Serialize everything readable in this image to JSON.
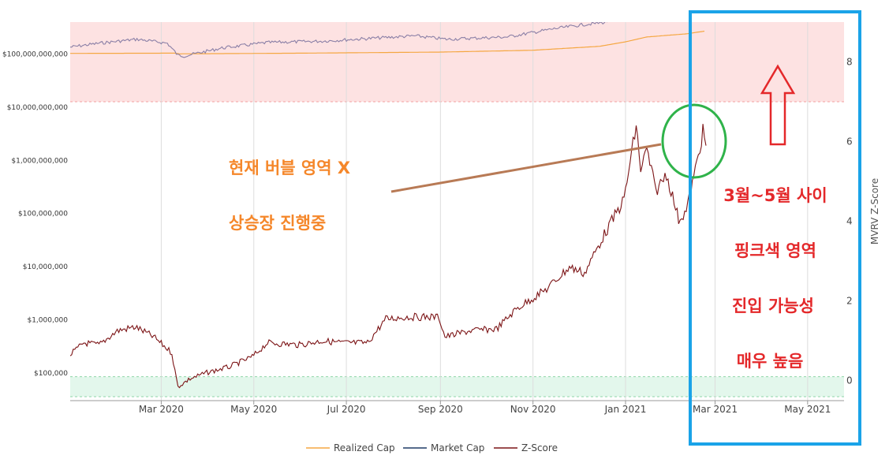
{
  "chart_data": {
    "type": "line",
    "x_range": [
      "2020-01-01",
      "2021-05-25"
    ],
    "y_left": {
      "scale": "log",
      "range": [
        30000,
        400000000000
      ],
      "ticks": [
        100000,
        1000000,
        10000000,
        100000000,
        1000000000,
        10000000000,
        100000000000
      ],
      "tick_labels": [
        "$100,000",
        "$1,000,000",
        "$10,000,000",
        "$100,000,000",
        "$1,000,000,000",
        "$10,000,000,000",
        "$100,000,000,000"
      ]
    },
    "y_right": {
      "label": "MVRV Z-Score",
      "range": [
        -0.5,
        9
      ],
      "ticks": [
        0,
        2,
        4,
        6,
        8
      ],
      "tick_labels": [
        "0",
        "2",
        "4",
        "6",
        "8"
      ]
    },
    "x_ticks": [
      {
        "date": "2020-03-01",
        "label": "Mar 2020"
      },
      {
        "date": "2020-05-01",
        "label": "May 2020"
      },
      {
        "date": "2020-07-01",
        "label": "Jul 2020"
      },
      {
        "date": "2020-09-01",
        "label": "Sep 2020"
      },
      {
        "date": "2020-11-01",
        "label": "Nov 2020"
      },
      {
        "date": "2021-01-01",
        "label": "Jan 2021"
      },
      {
        "date": "2021-03-01",
        "label": "Mar 2021"
      },
      {
        "date": "2021-05-01",
        "label": "May 2021"
      }
    ],
    "zones": [
      {
        "name": "red",
        "z_from": 7,
        "z_to": 9,
        "color": "#fde2e2"
      },
      {
        "name": "green",
        "z_from": -0.4,
        "z_to": 0.1,
        "color": "#e3f7ec"
      }
    ],
    "series": [
      {
        "name": "Realized Cap",
        "color": "#f5a742",
        "axis": "left",
        "points": [
          [
            "2020-01-01",
            103000000000
          ],
          [
            "2020-03-10",
            104000000000
          ],
          [
            "2020-03-13",
            101000000000
          ],
          [
            "2020-06-01",
            104000000000
          ],
          [
            "2020-09-01",
            109000000000
          ],
          [
            "2020-11-01",
            118000000000
          ],
          [
            "2020-12-15",
            140000000000
          ],
          [
            "2021-01-01",
            170000000000
          ],
          [
            "2021-01-15",
            210000000000
          ],
          [
            "2021-02-10",
            240000000000
          ],
          [
            "2021-02-22",
            270000000000
          ]
        ]
      },
      {
        "name": "Market Cap",
        "color": "#1f3c66",
        "axis": "left",
        "points": [
          [
            "2020-01-01",
            135000000000
          ],
          [
            "2020-01-20",
            160000000000
          ],
          [
            "2020-02-14",
            190000000000
          ],
          [
            "2020-03-05",
            160000000000
          ],
          [
            "2020-03-12",
            95000000000
          ],
          [
            "2020-03-16",
            92000000000
          ],
          [
            "2020-04-10",
            130000000000
          ],
          [
            "2020-05-10",
            165000000000
          ],
          [
            "2020-06-15",
            175000000000
          ],
          [
            "2020-07-27",
            205000000000
          ],
          [
            "2020-08-15",
            220000000000
          ],
          [
            "2020-09-05",
            190000000000
          ],
          [
            "2020-10-15",
            210000000000
          ],
          [
            "2020-11-15",
            300000000000
          ],
          [
            "2020-12-05",
            360000000000
          ],
          [
            "2020-12-20",
            400000000000
          ]
        ]
      },
      {
        "name": "Z-Score",
        "color": "#7c1416",
        "axis": "right",
        "points": [
          [
            "2020-01-01",
            0.65
          ],
          [
            "2020-01-10",
            0.95
          ],
          [
            "2020-01-20",
            0.9
          ],
          [
            "2020-02-01",
            1.25
          ],
          [
            "2020-02-13",
            1.35
          ],
          [
            "2020-02-25",
            1.1
          ],
          [
            "2020-03-08",
            0.7
          ],
          [
            "2020-03-10",
            0.25
          ],
          [
            "2020-03-12",
            -0.15
          ],
          [
            "2020-03-20",
            0.05
          ],
          [
            "2020-03-31",
            0.2
          ],
          [
            "2020-04-15",
            0.35
          ],
          [
            "2020-04-30",
            0.6
          ],
          [
            "2020-05-10",
            0.95
          ],
          [
            "2020-05-31",
            0.9
          ],
          [
            "2020-06-15",
            1.0
          ],
          [
            "2020-06-30",
            0.95
          ],
          [
            "2020-07-15",
            0.95
          ],
          [
            "2020-07-27",
            1.55
          ],
          [
            "2020-08-10",
            1.6
          ],
          [
            "2020-08-31",
            1.6
          ],
          [
            "2020-09-04",
            1.1
          ],
          [
            "2020-09-20",
            1.25
          ],
          [
            "2020-10-08",
            1.3
          ],
          [
            "2020-10-21",
            1.8
          ],
          [
            "2020-11-10",
            2.3
          ],
          [
            "2020-11-25",
            2.85
          ],
          [
            "2020-12-05",
            2.7
          ],
          [
            "2020-12-17",
            3.6
          ],
          [
            "2020-12-31",
            4.55
          ],
          [
            "2021-01-08",
            6.4
          ],
          [
            "2021-01-11",
            5.3
          ],
          [
            "2021-01-15",
            5.8
          ],
          [
            "2021-01-21",
            4.75
          ],
          [
            "2021-01-28",
            5.2
          ],
          [
            "2021-02-05",
            4.05
          ],
          [
            "2021-02-10",
            4.25
          ],
          [
            "2021-02-15",
            5.1
          ],
          [
            "2021-02-21",
            6.25
          ],
          [
            "2021-02-23",
            5.9
          ]
        ]
      }
    ],
    "legend": [
      "Realized Cap",
      "Market Cap",
      "Z-Score"
    ],
    "legend_position": "bottom"
  },
  "annotations": {
    "line1": "현재 버블 영역 X",
    "line2": "상승장 진행중",
    "right1": "3월~5월 사이",
    "right2": "핑크색 영역",
    "right3": "진입 가능성",
    "right4": "매우 높음"
  },
  "colors": {
    "orange_text": "#f5872a",
    "red_text": "#e4282a",
    "blue_box": "#1aa3e8",
    "green_circle": "#2fb34a",
    "red_arrow": "#e4282a"
  }
}
